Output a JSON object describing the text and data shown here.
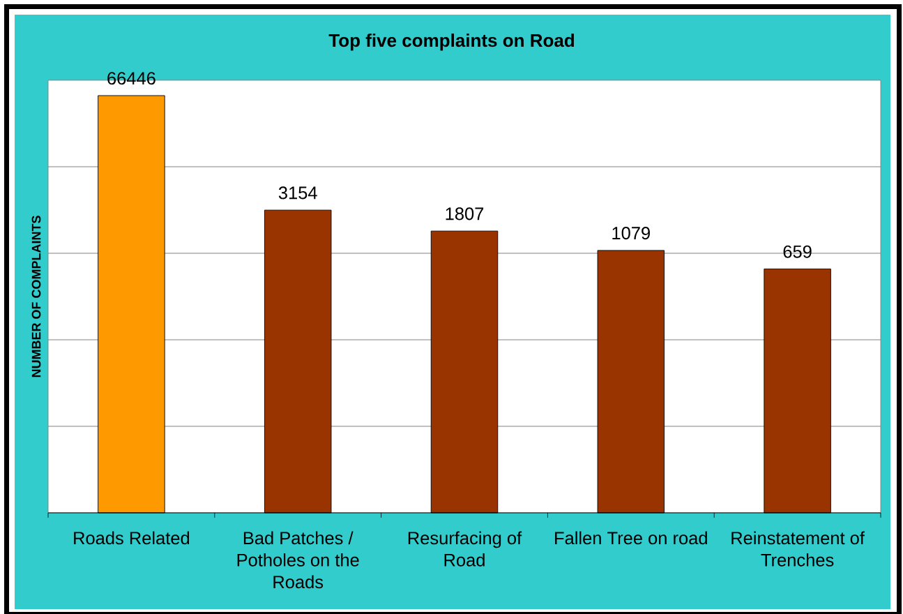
{
  "chart_data": {
    "type": "bar",
    "title": "Top five complaints on Road",
    "ylabel": "NUMBER OF COMPLAINTS",
    "categories": [
      "Roads Related",
      "Bad Patches / Potholes on the Roads",
      "Resurfacing of Road",
      "Fallen Tree on road",
      "Reinstatement of Trenches"
    ],
    "values": [
      66446,
      3154,
      1807,
      1079,
      659
    ],
    "colors": [
      "#ff9900",
      "#993300",
      "#993300",
      "#993300",
      "#993300"
    ],
    "log": "y",
    "ylim": [
      1,
      100000
    ],
    "yticks": [
      {
        "value": 10,
        "label": null
      },
      {
        "value": 100,
        "label": null
      },
      {
        "value": 1000,
        "label": null
      },
      {
        "value": 10000,
        "label": null
      }
    ],
    "grid": "y",
    "data_labels": true,
    "tick_labels": "x"
  }
}
